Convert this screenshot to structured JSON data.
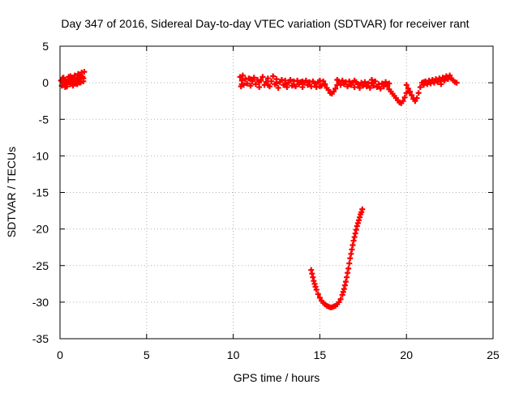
{
  "chart_data": {
    "type": "scatter",
    "title": "Day 347 of 2016, Sidereal Day-to-day VTEC variation (SDTVAR) for receiver rant",
    "xlabel": "GPS time / hours",
    "ylabel": "SDTVAR / TECUs",
    "xlim": [
      0,
      25
    ],
    "ylim": [
      -35,
      5
    ],
    "x_ticks": [
      0,
      5,
      10,
      15,
      20,
      25
    ],
    "y_ticks": [
      5,
      0,
      -5,
      -10,
      -15,
      -20,
      -25,
      -30,
      -35
    ],
    "grid": true,
    "legend": "none",
    "marker": "plus",
    "colors": {
      "series": "#ff0000",
      "grid": "#b0b0b0",
      "axes": "#000000"
    },
    "series": [
      {
        "values_note_free": true,
        "points": [
          [
            0.05,
            0.3
          ],
          [
            0.1,
            -0.4
          ],
          [
            0.15,
            0.6
          ],
          [
            0.2,
            0.1
          ],
          [
            0.25,
            -0.3
          ],
          [
            0.3,
            0.4
          ],
          [
            0.35,
            0.0
          ],
          [
            0.4,
            -0.5
          ],
          [
            0.45,
            0.3
          ],
          [
            0.5,
            0.8
          ],
          [
            0.55,
            0.2
          ],
          [
            0.6,
            -0.2
          ],
          [
            0.65,
            0.5
          ],
          [
            0.7,
            0.0
          ],
          [
            0.75,
            -0.4
          ],
          [
            0.8,
            0.6
          ],
          [
            0.85,
            1.0
          ],
          [
            0.9,
            0.3
          ],
          [
            0.95,
            -0.1
          ],
          [
            1.0,
            0.7
          ],
          [
            1.05,
            1.2
          ],
          [
            1.1,
            0.5
          ],
          [
            1.15,
            0.0
          ],
          [
            1.2,
            0.9
          ],
          [
            1.25,
            1.4
          ],
          [
            1.3,
            0.8
          ],
          [
            1.35,
            0.2
          ],
          [
            1.4,
            1.5
          ],
          [
            0.2,
            0.7
          ],
          [
            0.4,
            0.2
          ],
          [
            0.6,
            0.9
          ],
          [
            0.8,
            -0.1
          ],
          [
            1.0,
            -0.2
          ],
          [
            1.2,
            0.1
          ],
          [
            1.35,
            0.6
          ],
          [
            0.3,
            -0.6
          ],
          [
            0.7,
            0.7
          ],
          [
            1.1,
            1.0
          ],
          [
            10.4,
            0.8
          ],
          [
            10.45,
            -0.5
          ],
          [
            10.5,
            0.3
          ],
          [
            10.55,
            1.0
          ],
          [
            10.6,
            -0.3
          ],
          [
            10.7,
            0.5
          ],
          [
            10.8,
            -0.1
          ],
          [
            10.9,
            0.6
          ],
          [
            11.0,
            -0.4
          ],
          [
            11.1,
            0.2
          ],
          [
            11.2,
            0.7
          ],
          [
            11.3,
            -0.2
          ],
          [
            11.4,
            0.4
          ],
          [
            11.5,
            -0.6
          ],
          [
            11.6,
            0.3
          ],
          [
            11.7,
            0.8
          ],
          [
            11.8,
            -0.3
          ],
          [
            11.9,
            0.1
          ],
          [
            12.0,
            0.6
          ],
          [
            12.1,
            -0.5
          ],
          [
            12.2,
            0.2
          ],
          [
            12.3,
            0.9
          ],
          [
            12.4,
            -0.2
          ],
          [
            12.5,
            0.5
          ],
          [
            12.6,
            -0.7
          ],
          [
            12.7,
            0.1
          ],
          [
            12.8,
            0.4
          ],
          [
            12.9,
            -0.3
          ],
          [
            13.0,
            0.3
          ],
          [
            13.1,
            -0.6
          ],
          [
            13.2,
            0.0
          ],
          [
            13.3,
            0.4
          ],
          [
            13.4,
            -0.4
          ],
          [
            13.5,
            0.2
          ],
          [
            13.6,
            -0.5
          ],
          [
            13.7,
            0.3
          ],
          [
            13.8,
            -0.2
          ],
          [
            13.9,
            0.1
          ],
          [
            14.0,
            -0.6
          ],
          [
            14.1,
            0.0
          ],
          [
            14.2,
            0.3
          ],
          [
            14.3,
            -0.3
          ],
          [
            14.4,
            0.1
          ],
          [
            14.5,
            -0.5
          ],
          [
            14.6,
            0.2
          ],
          [
            14.7,
            -0.1
          ],
          [
            14.8,
            -0.6
          ],
          [
            14.9,
            0.1
          ],
          [
            15.0,
            0.3
          ],
          [
            15.1,
            -0.4
          ],
          [
            15.2,
            0.2
          ],
          [
            15.3,
            -0.2
          ],
          [
            15.4,
            -0.7
          ],
          [
            15.5,
            -1.0
          ],
          [
            15.6,
            -1.4
          ],
          [
            15.7,
            -1.5
          ],
          [
            15.8,
            -1.2
          ],
          [
            15.9,
            -0.8
          ],
          [
            16.0,
            -0.3
          ],
          [
            16.1,
            0.2
          ],
          [
            16.2,
            -0.3
          ],
          [
            16.3,
            0.3
          ],
          [
            16.4,
            -0.2
          ],
          [
            16.5,
            0.1
          ],
          [
            16.6,
            -0.5
          ],
          [
            16.7,
            0.2
          ],
          [
            16.8,
            -0.3
          ],
          [
            16.9,
            0.0
          ],
          [
            17.0,
            -0.6
          ],
          [
            17.1,
            0.1
          ],
          [
            17.2,
            -0.2
          ],
          [
            17.3,
            -0.7
          ],
          [
            17.4,
            0.0
          ],
          [
            17.5,
            -0.4
          ],
          [
            17.6,
            0.1
          ],
          [
            17.7,
            -0.5
          ],
          [
            17.8,
            -0.1
          ],
          [
            17.9,
            -0.7
          ],
          [
            18.0,
            0.0
          ],
          [
            18.1,
            -0.4
          ],
          [
            18.2,
            0.2
          ],
          [
            18.3,
            -0.6
          ],
          [
            18.4,
            -0.2
          ],
          [
            18.5,
            -0.8
          ],
          [
            18.6,
            -0.1
          ],
          [
            18.7,
            -0.5
          ],
          [
            18.8,
            0.1
          ],
          [
            18.9,
            -0.4
          ],
          [
            19.0,
            -0.9
          ],
          [
            19.1,
            -1.2
          ],
          [
            19.2,
            -1.5
          ],
          [
            19.3,
            -1.8
          ],
          [
            19.4,
            -2.1
          ],
          [
            19.5,
            -2.4
          ],
          [
            19.6,
            -2.7
          ],
          [
            19.7,
            -2.8
          ],
          [
            19.8,
            -2.5
          ],
          [
            19.9,
            -2.0
          ],
          [
            20.0,
            -1.4
          ],
          [
            20.1,
            -0.8
          ],
          [
            20.2,
            -1.2
          ],
          [
            20.3,
            -1.7
          ],
          [
            20.4,
            -2.2
          ],
          [
            20.5,
            -2.5
          ],
          [
            20.6,
            -2.1
          ],
          [
            20.7,
            -1.4
          ],
          [
            20.8,
            -0.6
          ],
          [
            20.9,
            0.0
          ],
          [
            21.0,
            -0.3
          ],
          [
            21.1,
            0.2
          ],
          [
            21.2,
            -0.2
          ],
          [
            21.3,
            0.3
          ],
          [
            21.4,
            -0.1
          ],
          [
            21.5,
            0.4
          ],
          [
            21.6,
            0.0
          ],
          [
            21.7,
            0.5
          ],
          [
            21.8,
            0.1
          ],
          [
            21.9,
            0.6
          ],
          [
            22.0,
            0.2
          ],
          [
            22.1,
            0.7
          ],
          [
            22.2,
            0.3
          ],
          [
            22.3,
            0.9
          ],
          [
            22.4,
            0.5
          ],
          [
            22.5,
            1.0
          ],
          [
            22.6,
            0.6
          ],
          [
            22.7,
            0.3
          ],
          [
            22.8,
            0.1
          ],
          [
            22.9,
            0.0
          ],
          [
            10.5,
            -0.2
          ],
          [
            11.0,
            0.5
          ],
          [
            11.5,
            0.1
          ],
          [
            12.0,
            -0.3
          ],
          [
            12.5,
            -0.1
          ],
          [
            13.0,
            -0.2
          ],
          [
            13.5,
            -0.3
          ],
          [
            14.0,
            0.2
          ],
          [
            15.0,
            -0.5
          ],
          [
            16.0,
            0.4
          ],
          [
            17.0,
            0.3
          ],
          [
            18.0,
            0.4
          ],
          [
            19.0,
            -0.1
          ],
          [
            20.0,
            -0.3
          ],
          [
            21.0,
            0.1
          ],
          [
            22.0,
            -0.2
          ],
          [
            14.5,
            -25.6
          ],
          [
            14.6,
            -26.6
          ],
          [
            14.7,
            -27.5
          ],
          [
            14.8,
            -28.3
          ],
          [
            14.9,
            -28.9
          ],
          [
            15.0,
            -29.4
          ],
          [
            15.1,
            -29.8
          ],
          [
            15.2,
            -30.1
          ],
          [
            15.3,
            -30.3
          ],
          [
            15.4,
            -30.5
          ],
          [
            15.5,
            -30.6
          ],
          [
            15.6,
            -30.7
          ],
          [
            15.7,
            -30.7
          ],
          [
            15.8,
            -30.6
          ],
          [
            15.9,
            -30.5
          ],
          [
            16.0,
            -30.3
          ],
          [
            16.1,
            -30.0
          ],
          [
            16.2,
            -29.6
          ],
          [
            16.3,
            -29.0
          ],
          [
            16.4,
            -28.2
          ],
          [
            16.5,
            -27.2
          ],
          [
            16.6,
            -26.0
          ],
          [
            16.7,
            -24.7
          ],
          [
            16.8,
            -23.4
          ],
          [
            16.9,
            -22.2
          ],
          [
            17.0,
            -21.1
          ],
          [
            17.1,
            -20.1
          ],
          [
            17.2,
            -19.2
          ],
          [
            17.3,
            -18.4
          ],
          [
            17.4,
            -17.7
          ],
          [
            17.45,
            -17.3
          ],
          [
            14.55,
            -26.1
          ],
          [
            14.65,
            -27.1
          ],
          [
            14.75,
            -27.9
          ],
          [
            16.35,
            -28.6
          ],
          [
            16.45,
            -27.7
          ],
          [
            16.55,
            -26.6
          ],
          [
            16.65,
            -25.4
          ],
          [
            16.75,
            -24.0
          ],
          [
            16.85,
            -22.8
          ],
          [
            16.95,
            -21.6
          ],
          [
            17.05,
            -20.6
          ],
          [
            17.15,
            -19.6
          ],
          [
            17.25,
            -18.8
          ],
          [
            17.35,
            -18.0
          ]
        ]
      }
    ]
  }
}
